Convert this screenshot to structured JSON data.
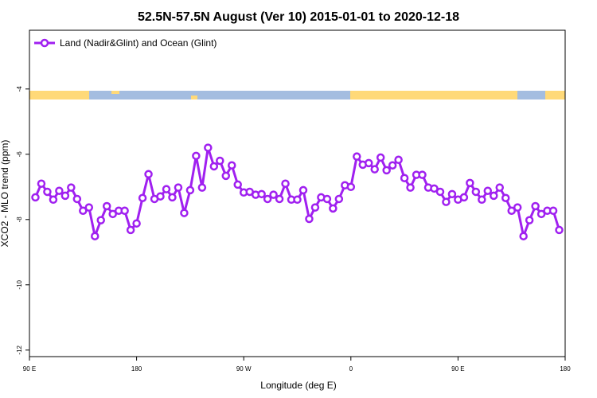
{
  "chart_data": {
    "type": "line",
    "title": "52.5N-57.5N August (Ver 10)   2015-01-01 to 2020-12-18",
    "x_label": "Longitude (deg E)",
    "y_label": "XCO2 - MLO trend (ppm)",
    "xlim": [
      90,
      540
    ],
    "ylim": [
      -12.2,
      -2.2
    ],
    "xticks": [
      {
        "value": 90,
        "label": "90 E"
      },
      {
        "value": 180,
        "label": "180"
      },
      {
        "value": 270,
        "label": "90 W"
      },
      {
        "value": 360,
        "label": "0"
      },
      {
        "value": 450,
        "label": "90 E"
      },
      {
        "value": 540,
        "label": "180"
      }
    ],
    "yticks": [
      -4,
      -6,
      -8,
      -10,
      -12
    ],
    "legend": "upper left",
    "x": [
      95,
      100,
      105,
      110,
      115,
      120,
      125,
      130,
      135,
      140,
      145,
      150,
      155,
      160,
      165,
      170,
      175,
      180,
      185,
      190,
      195,
      200,
      205,
      210,
      215,
      220,
      225,
      230,
      235,
      240,
      245,
      250,
      255,
      260,
      265,
      270,
      275,
      280,
      285,
      290,
      295,
      300,
      305,
      310,
      315,
      320,
      325,
      330,
      335,
      340,
      345,
      350,
      355,
      360,
      365,
      370,
      375,
      380,
      385,
      390,
      395,
      400,
      405,
      410,
      415,
      420,
      425,
      430,
      435,
      440,
      445,
      450,
      455,
      460,
      465,
      470,
      475,
      480,
      485,
      490,
      495,
      500,
      505,
      510,
      515,
      520,
      525,
      530,
      535
    ],
    "series": [
      {
        "name": "Land (Nadir&Glint) and Ocean (Glint)",
        "color": "#a020f0",
        "values": [
          -7.32,
          -6.9,
          -7.15,
          -7.39,
          -7.12,
          -7.27,
          -7.02,
          -7.37,
          -7.73,
          -7.63,
          -8.51,
          -8.02,
          -7.59,
          -7.83,
          -7.73,
          -7.73,
          -8.32,
          -8.12,
          -7.34,
          -6.61,
          -7.37,
          -7.29,
          -7.07,
          -7.32,
          -7.02,
          -7.8,
          -7.1,
          -6.05,
          -7.02,
          -5.8,
          -6.37,
          -6.2,
          -6.66,
          -6.34,
          -6.93,
          -7.17,
          -7.15,
          -7.24,
          -7.22,
          -7.37,
          -7.24,
          -7.37,
          -6.9,
          -7.39,
          -7.39,
          -7.1,
          -7.98,
          -7.63,
          -7.32,
          -7.37,
          -7.66,
          -7.37,
          -6.95,
          -7.0,
          -6.07,
          -6.32,
          -6.27,
          -6.46,
          -6.1,
          -6.49,
          -6.34,
          -6.17,
          -6.73,
          -7.02,
          -6.63,
          -6.63,
          -7.02,
          -7.05,
          -7.15,
          -7.46,
          -7.22,
          -7.39,
          -7.32,
          -6.88,
          -7.15,
          -7.39,
          -7.12,
          -7.27,
          -7.02,
          -7.34,
          -7.73,
          -7.63,
          -8.51,
          -8.02,
          -7.59,
          -7.83,
          -7.73,
          -7.73,
          -8.32
        ]
      }
    ]
  }
}
